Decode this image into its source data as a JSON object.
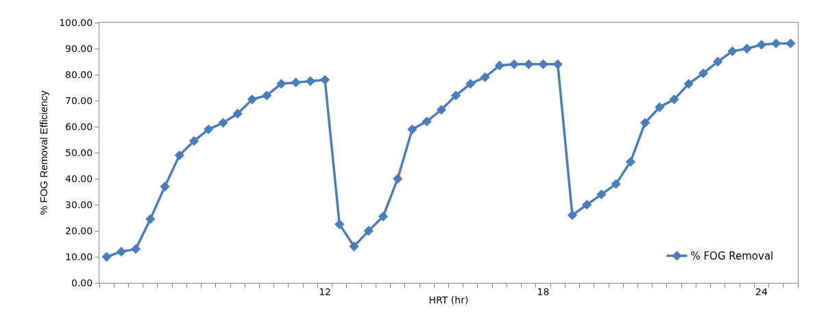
{
  "chart_data": {
    "type": "line",
    "xlabel": "HRT (hr)",
    "ylabel": "% FOG Removal Efficiency",
    "categories": [
      null,
      null,
      null,
      null,
      null,
      null,
      null,
      null,
      null,
      null,
      null,
      null,
      null,
      null,
      null,
      "12",
      null,
      null,
      null,
      null,
      null,
      null,
      null,
      null,
      null,
      null,
      null,
      null,
      null,
      null,
      "18",
      null,
      null,
      null,
      null,
      null,
      null,
      null,
      null,
      null,
      null,
      null,
      null,
      null,
      null,
      "24",
      null,
      null
    ],
    "series": [
      {
        "name": "% FOG Removal",
        "color": "#4a7ebb",
        "values": [
          10,
          12,
          13,
          24.5,
          37,
          49,
          54.5,
          59,
          61.5,
          65,
          70.5,
          72,
          76.5,
          77,
          77.5,
          78,
          22.5,
          14,
          20,
          25.5,
          40,
          59,
          62,
          66.5,
          72,
          76.5,
          79,
          83.5,
          84,
          84,
          84,
          84,
          26,
          30,
          34,
          38,
          46.5,
          61.5,
          67.5,
          70.5,
          76.5,
          80.5,
          85,
          89,
          90,
          91.5,
          92,
          92
        ]
      }
    ],
    "ylim": [
      0,
      100
    ],
    "yticks": [
      {
        "value": 0,
        "label": "0.00"
      },
      {
        "value": 10,
        "label": "10.00"
      },
      {
        "value": 20,
        "label": "20.00"
      },
      {
        "value": 30,
        "label": "30.00"
      },
      {
        "value": 40,
        "label": "40.00"
      },
      {
        "value": 50,
        "label": "50.00"
      },
      {
        "value": 60,
        "label": "60.00"
      },
      {
        "value": 70,
        "label": "70.00"
      },
      {
        "value": 80,
        "label": "80.00"
      },
      {
        "value": 90,
        "label": "90.00"
      },
      {
        "value": 100,
        "label": "100.00"
      }
    ],
    "grid": false,
    "legend": "bottom right",
    "marker": "diamond",
    "line_style": "solid"
  }
}
